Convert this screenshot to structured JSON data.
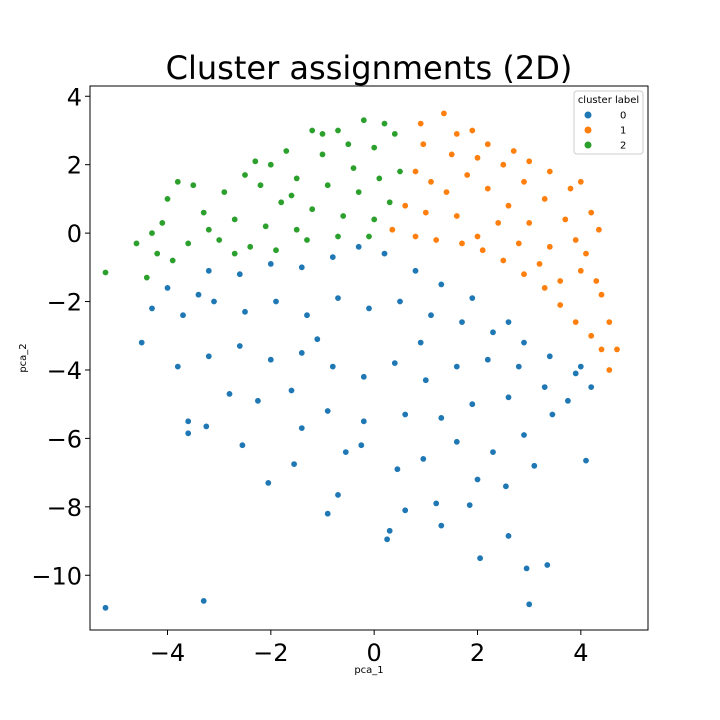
{
  "chart_data": {
    "type": "scatter",
    "title": "Cluster assignments (2D)",
    "xlabel": "pca_1",
    "ylabel": "pca_2",
    "xlim": [
      -5.5,
      5.3
    ],
    "ylim": [
      -11.6,
      4.3
    ],
    "xticks": [
      -4,
      -2,
      0,
      2,
      4
    ],
    "yticks": [
      -10,
      -8,
      -6,
      -4,
      -2,
      0,
      2,
      4
    ],
    "xtick_labels": [
      "−4",
      "−2",
      "0",
      "2",
      "4"
    ],
    "ytick_labels": [
      "−10",
      "−8",
      "−6",
      "−4",
      "−2",
      "0",
      "2",
      "4"
    ],
    "grid": false,
    "legend": {
      "title": "cluster label",
      "placement": "top-right",
      "entries": [
        "0",
        "1",
        "2"
      ]
    },
    "series": [
      {
        "name": "0",
        "color": "#1f77b4",
        "points": [
          [
            -5.2,
            -10.95
          ],
          [
            -3.3,
            -10.75
          ],
          [
            3.0,
            -10.85
          ],
          [
            2.95,
            -9.8
          ],
          [
            3.35,
            -9.7
          ],
          [
            2.05,
            -9.5
          ],
          [
            0.25,
            -8.95
          ],
          [
            0.3,
            -8.7
          ],
          [
            1.3,
            -8.55
          ],
          [
            0.6,
            -8.1
          ],
          [
            -0.9,
            -8.2
          ],
          [
            2.6,
            -8.85
          ],
          [
            4.1,
            -6.65
          ],
          [
            -2.05,
            -7.3
          ],
          [
            -0.7,
            -7.65
          ],
          [
            1.2,
            -7.9
          ],
          [
            1.85,
            -7.95
          ],
          [
            2.0,
            -7.2
          ],
          [
            2.55,
            -7.4
          ],
          [
            3.1,
            -6.8
          ],
          [
            -3.6,
            -5.85
          ],
          [
            -3.25,
            -5.65
          ],
          [
            -2.55,
            -6.2
          ],
          [
            -1.55,
            -6.75
          ],
          [
            -1.4,
            -5.7
          ],
          [
            -0.55,
            -6.4
          ],
          [
            -0.25,
            -6.2
          ],
          [
            0.45,
            -6.9
          ],
          [
            0.95,
            -6.6
          ],
          [
            1.6,
            -6.1
          ],
          [
            2.3,
            -6.4
          ],
          [
            2.9,
            -5.9
          ],
          [
            3.45,
            -5.3
          ],
          [
            3.75,
            -4.9
          ],
          [
            4.2,
            -4.5
          ],
          [
            -3.6,
            -5.5
          ],
          [
            -2.8,
            -4.7
          ],
          [
            -2.25,
            -4.9
          ],
          [
            -1.6,
            -4.6
          ],
          [
            -0.9,
            -5.2
          ],
          [
            -0.2,
            -5.5
          ],
          [
            0.6,
            -5.3
          ],
          [
            1.3,
            -5.4
          ],
          [
            1.9,
            -5.0
          ],
          [
            2.6,
            -4.8
          ],
          [
            3.3,
            -4.5
          ],
          [
            3.9,
            -4.1
          ],
          [
            -4.5,
            -3.2
          ],
          [
            -3.8,
            -3.9
          ],
          [
            -3.2,
            -3.6
          ],
          [
            -2.6,
            -3.3
          ],
          [
            -2.0,
            -3.7
          ],
          [
            -1.4,
            -3.5
          ],
          [
            -0.8,
            -3.9
          ],
          [
            -0.2,
            -4.2
          ],
          [
            0.4,
            -3.8
          ],
          [
            1.0,
            -4.3
          ],
          [
            1.6,
            -3.9
          ],
          [
            2.2,
            -3.7
          ],
          [
            2.8,
            -3.9
          ],
          [
            3.4,
            -3.6
          ],
          [
            4.0,
            -3.9
          ],
          [
            -4.3,
            -2.2
          ],
          [
            -3.7,
            -2.4
          ],
          [
            -3.1,
            -2.0
          ],
          [
            -2.5,
            -2.3
          ],
          [
            -1.9,
            -2.0
          ],
          [
            -1.3,
            -2.4
          ],
          [
            -0.7,
            -1.9
          ],
          [
            -0.1,
            -2.2
          ],
          [
            0.5,
            -2.0
          ],
          [
            1.1,
            -2.4
          ],
          [
            1.7,
            -2.6
          ],
          [
            2.3,
            -2.9
          ],
          [
            2.9,
            -3.2
          ],
          [
            -3.2,
            -1.1
          ],
          [
            -2.6,
            -1.2
          ],
          [
            -2.0,
            -0.9
          ],
          [
            -1.4,
            -1.0
          ],
          [
            -0.8,
            -0.7
          ],
          [
            -0.3,
            -0.4
          ],
          [
            0.2,
            -0.6
          ],
          [
            0.8,
            -1.1
          ],
          [
            1.3,
            -1.5
          ],
          [
            1.9,
            -1.9
          ],
          [
            -4.0,
            -1.6
          ],
          [
            -3.4,
            -1.8
          ],
          [
            -1.1,
            -3.1
          ],
          [
            0.9,
            -3.2
          ],
          [
            2.6,
            -2.6
          ]
        ]
      },
      {
        "name": "1",
        "color": "#ff7f0e",
        "points": [
          [
            0.35,
            0.1
          ],
          [
            0.6,
            0.8
          ],
          [
            0.8,
            1.8
          ],
          [
            0.95,
            2.6
          ],
          [
            0.9,
            3.2
          ],
          [
            1.35,
            3.5
          ],
          [
            1.6,
            2.9
          ],
          [
            1.9,
            3.0
          ],
          [
            2.2,
            2.6
          ],
          [
            2.7,
            2.4
          ],
          [
            3.0,
            2.1
          ],
          [
            3.4,
            1.8
          ],
          [
            3.8,
            1.3
          ],
          [
            4.2,
            0.6
          ],
          [
            4.35,
            0.1
          ],
          [
            4.1,
            -0.6
          ],
          [
            4.3,
            -1.4
          ],
          [
            4.4,
            -1.8
          ],
          [
            4.55,
            -2.6
          ],
          [
            4.7,
            -3.4
          ],
          [
            4.4,
            -3.4
          ],
          [
            4.55,
            -4.0
          ],
          [
            4.2,
            -3.0
          ],
          [
            3.9,
            -2.6
          ],
          [
            3.6,
            -2.1
          ],
          [
            3.3,
            -1.6
          ],
          [
            2.9,
            -1.2
          ],
          [
            2.5,
            -0.8
          ],
          [
            2.1,
            -0.5
          ],
          [
            1.7,
            -0.3
          ],
          [
            1.2,
            -0.2
          ],
          [
            0.8,
            -0.1
          ],
          [
            1.0,
            0.6
          ],
          [
            1.4,
            1.2
          ],
          [
            1.8,
            1.7
          ],
          [
            2.2,
            1.3
          ],
          [
            2.6,
            0.8
          ],
          [
            3.0,
            0.3
          ],
          [
            3.4,
            -0.4
          ],
          [
            3.7,
            0.4
          ],
          [
            3.3,
            1.0
          ],
          [
            2.9,
            1.5
          ],
          [
            2.5,
            2.0
          ],
          [
            2.0,
            2.2
          ],
          [
            1.5,
            2.3
          ],
          [
            1.1,
            1.5
          ],
          [
            1.6,
            0.5
          ],
          [
            2.0,
            -0.1
          ],
          [
            2.4,
            0.3
          ],
          [
            2.8,
            -0.3
          ],
          [
            3.2,
            -0.9
          ],
          [
            3.6,
            -1.4
          ],
          [
            4.0,
            -1.1
          ],
          [
            3.9,
            -0.2
          ],
          [
            4.0,
            1.5
          ]
        ]
      },
      {
        "name": "2",
        "color": "#2ca02c",
        "points": [
          [
            -5.2,
            -1.15
          ],
          [
            -4.6,
            -0.3
          ],
          [
            -4.4,
            -1.3
          ],
          [
            -4.2,
            -0.6
          ],
          [
            -4.1,
            0.3
          ],
          [
            -4.0,
            1.0
          ],
          [
            -3.8,
            1.5
          ],
          [
            -3.5,
            1.4
          ],
          [
            -3.3,
            0.6
          ],
          [
            -3.0,
            -0.2
          ],
          [
            -2.7,
            0.4
          ],
          [
            -2.9,
            1.2
          ],
          [
            -2.5,
            1.7
          ],
          [
            -2.3,
            2.1
          ],
          [
            -2.0,
            2.0
          ],
          [
            -1.7,
            2.4
          ],
          [
            -1.5,
            1.6
          ],
          [
            -1.2,
            3.0
          ],
          [
            -1.0,
            2.3
          ],
          [
            -0.7,
            3.0
          ],
          [
            -0.5,
            2.6
          ],
          [
            -0.2,
            3.3
          ],
          [
            0.0,
            2.5
          ],
          [
            0.2,
            3.2
          ],
          [
            0.4,
            2.9
          ],
          [
            0.5,
            1.8
          ],
          [
            0.3,
            0.9
          ],
          [
            0.0,
            0.4
          ],
          [
            -0.3,
            1.2
          ],
          [
            -0.6,
            0.5
          ],
          [
            -0.9,
            1.4
          ],
          [
            -1.2,
            0.7
          ],
          [
            -1.5,
            0.1
          ],
          [
            -1.8,
            0.9
          ],
          [
            -2.1,
            0.2
          ],
          [
            -2.4,
            -0.4
          ],
          [
            -2.7,
            -0.6
          ],
          [
            -1.9,
            -0.5
          ],
          [
            -1.3,
            -0.2
          ],
          [
            -0.7,
            -0.1
          ],
          [
            -0.1,
            -0.1
          ],
          [
            -3.6,
            -0.3
          ],
          [
            -3.9,
            -0.8
          ],
          [
            -4.3,
            0.0
          ],
          [
            -1.0,
            2.9
          ],
          [
            -0.4,
            1.9
          ],
          [
            0.1,
            1.6
          ],
          [
            -1.6,
            1.1
          ],
          [
            -2.2,
            1.4
          ],
          [
            -3.2,
            0.1
          ]
        ]
      }
    ]
  }
}
